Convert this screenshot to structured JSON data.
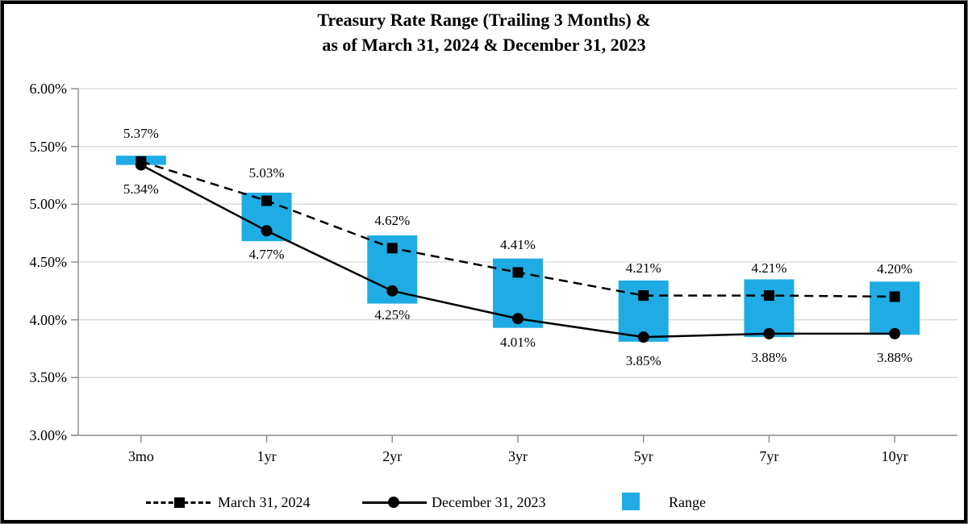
{
  "title": {
    "line1": "Treasury Rate Range (Trailing 3 Months) &",
    "line2": "as of March 31, 2024 & December 31, 2023"
  },
  "legend": [
    {
      "label": "March 31, 2024",
      "marker": "black-square-on-dashed-line"
    },
    {
      "label": "December 31, 2023",
      "marker": "black-circle-on-solid-line"
    },
    {
      "label": "Range",
      "marker": "blue-swatch"
    }
  ],
  "colors": {
    "range_bar": "#1FACE4",
    "series_line": "#000000",
    "gridline": "#D9D9D9",
    "axis": "#909090",
    "text": "#000000",
    "frame_border": "#000000"
  },
  "chart_data": {
    "type": "line",
    "subtype": "two line series with square/circle markers plus floating range bars (combo)",
    "categories": [
      "3mo",
      "1yr",
      "2yr",
      "3yr",
      "5yr",
      "7yr",
      "10yr"
    ],
    "series": [
      {
        "name": "March 31, 2024",
        "style": "dashed-line-square-markers",
        "values": [
          5.37,
          5.03,
          4.62,
          4.41,
          4.21,
          4.21,
          4.2
        ],
        "labels": [
          "5.37%",
          "5.03%",
          "4.62%",
          "4.41%",
          "4.21%",
          "4.21%",
          "4.20%"
        ],
        "label_position": "above"
      },
      {
        "name": "December 31, 2023",
        "style": "solid-line-circle-markers",
        "values": [
          5.34,
          4.77,
          4.25,
          4.01,
          3.85,
          3.88,
          3.88
        ],
        "labels": [
          "5.34%",
          "4.77%",
          "4.25%",
          "4.01%",
          "3.85%",
          "3.88%",
          "3.88%"
        ],
        "label_position": "below"
      }
    ],
    "range_bars": {
      "name": "Range",
      "estimated_from_pixels": true,
      "low": [
        5.34,
        4.68,
        4.14,
        3.93,
        3.81,
        3.85,
        3.87
      ],
      "high": [
        5.42,
        5.1,
        4.73,
        4.53,
        4.34,
        4.35,
        4.33
      ]
    },
    "y_axis": {
      "min": 3.0,
      "max": 6.0,
      "step": 0.5,
      "tick_labels": [
        "6.00%",
        "5.50%",
        "5.00%",
        "4.50%",
        "4.00%",
        "3.50%",
        "3.00%"
      ]
    },
    "x_tick_labels": [
      "3mo",
      "1yr",
      "2yr",
      "3yr",
      "5yr",
      "7yr",
      "10yr"
    ],
    "grid": "horizontal-only",
    "legend_position": "bottom"
  }
}
